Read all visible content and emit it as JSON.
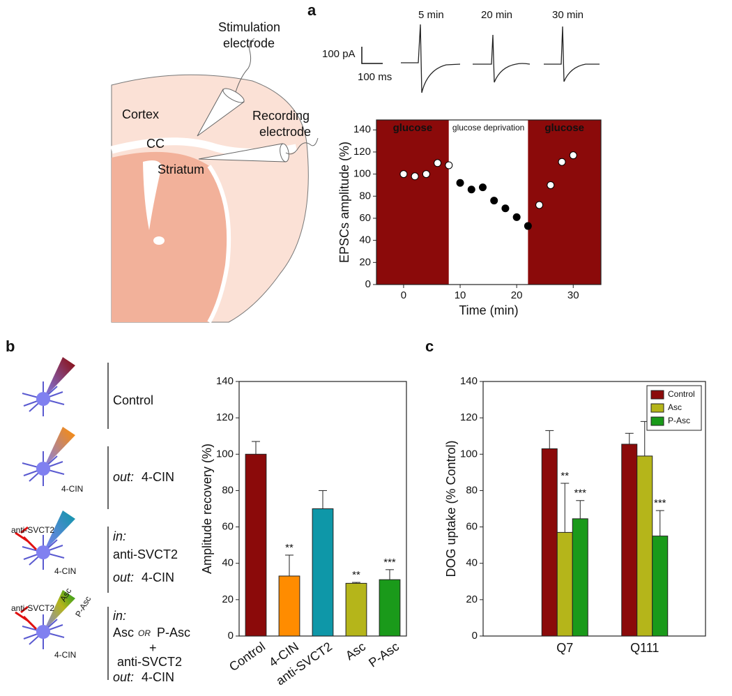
{
  "panel_labels": [
    "a",
    "b",
    "c"
  ],
  "diagram_a": {
    "slice_labels": [
      "Cortex",
      "CC",
      "Striatum"
    ],
    "electrode_labels": [
      [
        "Stimulation",
        "electrode"
      ],
      [
        "Recording",
        "electrode"
      ]
    ],
    "traces": {
      "times": [
        "5 min",
        "20 min",
        "30 min"
      ],
      "scale_y": "100 pA",
      "scale_x": "100 ms"
    }
  },
  "diagram_b": {
    "rows": [
      {
        "lines": [
          "Control"
        ]
      },
      {
        "lines": [
          "out:",
          "4-CIN"
        ],
        "icon_labels": [
          "4-CIN"
        ]
      },
      {
        "lines": [
          "in:",
          "anti-SVCT2",
          "out:",
          "4-CIN"
        ],
        "icon_labels": [
          "anti-SVCT2",
          "4-CIN"
        ]
      },
      {
        "lines": [
          "in:",
          "Asc",
          "OR",
          "P-Asc",
          "+",
          "anti-SVCT2",
          "out:",
          "4-CIN"
        ],
        "icon_labels": [
          "anti-SVCT2",
          "Asc",
          "P-Asc",
          "4-CIN"
        ]
      }
    ]
  },
  "chart_data": [
    {
      "type": "scatter",
      "xlabel": "Time (min)",
      "ylabel": "EPSCs amplitude (%)",
      "x": [
        0,
        2,
        4,
        6,
        8,
        10,
        12,
        14,
        16,
        18,
        20,
        22,
        24,
        26,
        28,
        30
      ],
      "values": [
        100,
        98,
        100,
        110,
        108,
        92,
        86,
        88,
        76,
        69,
        61,
        53,
        72,
        90,
        111,
        117
      ],
      "point_colors": [
        "#ffffff",
        "#ffffff",
        "#ffffff",
        "#ffffff",
        "#ffffff",
        "#000000",
        "#000000",
        "#000000",
        "#000000",
        "#000000",
        "#000000",
        "#000000",
        "#ffffff",
        "#ffffff",
        "#ffffff",
        "#ffffff"
      ],
      "regions": [
        {
          "label": "glucose",
          "start": -4.8,
          "end": 8,
          "color": "#8b0a0a"
        },
        {
          "label": "glucose deprivation",
          "start": 8,
          "end": 22,
          "color": "#ffffff"
        },
        {
          "label": "glucose",
          "start": 22,
          "end": 34.9,
          "color": "#8b0a0a"
        }
      ],
      "xlim": [
        -4.8,
        34.9
      ],
      "ylim": [
        0,
        149
      ],
      "xticks": [
        0,
        10,
        20,
        30
      ],
      "yticks": [
        0,
        20,
        40,
        60,
        80,
        100,
        120,
        140
      ]
    },
    {
      "type": "bar",
      "ylabel": "Amplitude recovery (%)",
      "categories": [
        "Control",
        "4-CIN",
        "anti-SVCT2",
        "Asc",
        "P-Asc"
      ],
      "values": [
        100,
        33,
        70,
        29,
        31
      ],
      "errors": [
        7,
        11.5,
        10,
        0.5,
        5.5
      ],
      "annotations": [
        null,
        "**",
        null,
        "**",
        "***"
      ],
      "colors": [
        "#8b0a0a",
        "#ff8c00",
        "#0e97a8",
        "#b5b51a",
        "#1a9a1a"
      ],
      "ylim": [
        0,
        140
      ],
      "yticks": [
        0,
        20,
        40,
        60,
        80,
        100,
        120,
        140
      ]
    },
    {
      "type": "grouped_bar",
      "ylabel": "DOG uptake (% Control)",
      "categories": [
        "Q7",
        "Q111"
      ],
      "series": [
        {
          "name": "Control",
          "color": "#8b0a0a",
          "values": [
            103,
            105.5
          ],
          "errors": [
            10,
            6
          ],
          "annotations": [
            null,
            null
          ]
        },
        {
          "name": "Asc",
          "color": "#b5b51a",
          "values": [
            57,
            99
          ],
          "errors": [
            27,
            19
          ],
          "annotations": [
            "**",
            null
          ]
        },
        {
          "name": "P-Asc",
          "color": "#1a9a1a",
          "values": [
            64.5,
            55
          ],
          "errors": [
            10,
            14
          ],
          "annotations": [
            "***",
            "***"
          ]
        }
      ],
      "legend": "top right",
      "ylim": [
        0,
        140
      ],
      "yticks": [
        0,
        20,
        40,
        60,
        80,
        100,
        120,
        140
      ]
    }
  ]
}
